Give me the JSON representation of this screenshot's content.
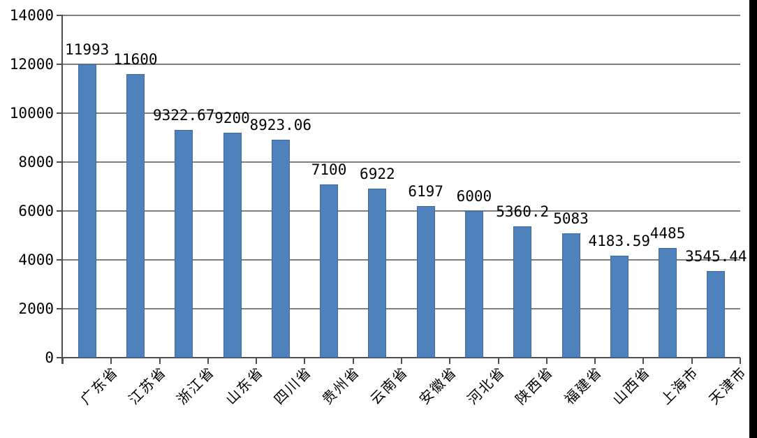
{
  "chart_data": {
    "type": "bar",
    "title": "",
    "xlabel": "",
    "ylabel": "",
    "categories": [
      "广东省",
      "江苏省",
      "浙江省",
      "山东省",
      "四川省",
      "贵州省",
      "云南省",
      "安徽省",
      "河北省",
      "陕西省",
      "福建省",
      "山西省",
      "上海市",
      "天津市"
    ],
    "values": [
      11993,
      11600,
      9322.67,
      9200,
      8923.06,
      7100,
      6922,
      6197,
      6000,
      5360.2,
      5083,
      4183.59,
      4485,
      3545.44
    ],
    "value_labels": [
      "11993",
      "11600",
      "9322.67",
      "9200",
      "8923.06",
      "7100",
      "6922",
      "6197",
      "6000",
      "5360.2",
      "5083",
      "4183.59",
      "4485",
      "3545.44"
    ],
    "ylim": [
      0,
      14000
    ],
    "yticks": [
      0,
      2000,
      4000,
      6000,
      8000,
      10000,
      12000,
      14000
    ],
    "grid": true,
    "legend": "none",
    "bar_color": "#4f81bd",
    "bar_edge_color": "#41699e",
    "gridline_color": "#7f7f7f",
    "axis_color": "#4d4d4d",
    "text_color": "#000000",
    "background_color": "#ffffff",
    "right_edge_bar_color": "#000000"
  }
}
